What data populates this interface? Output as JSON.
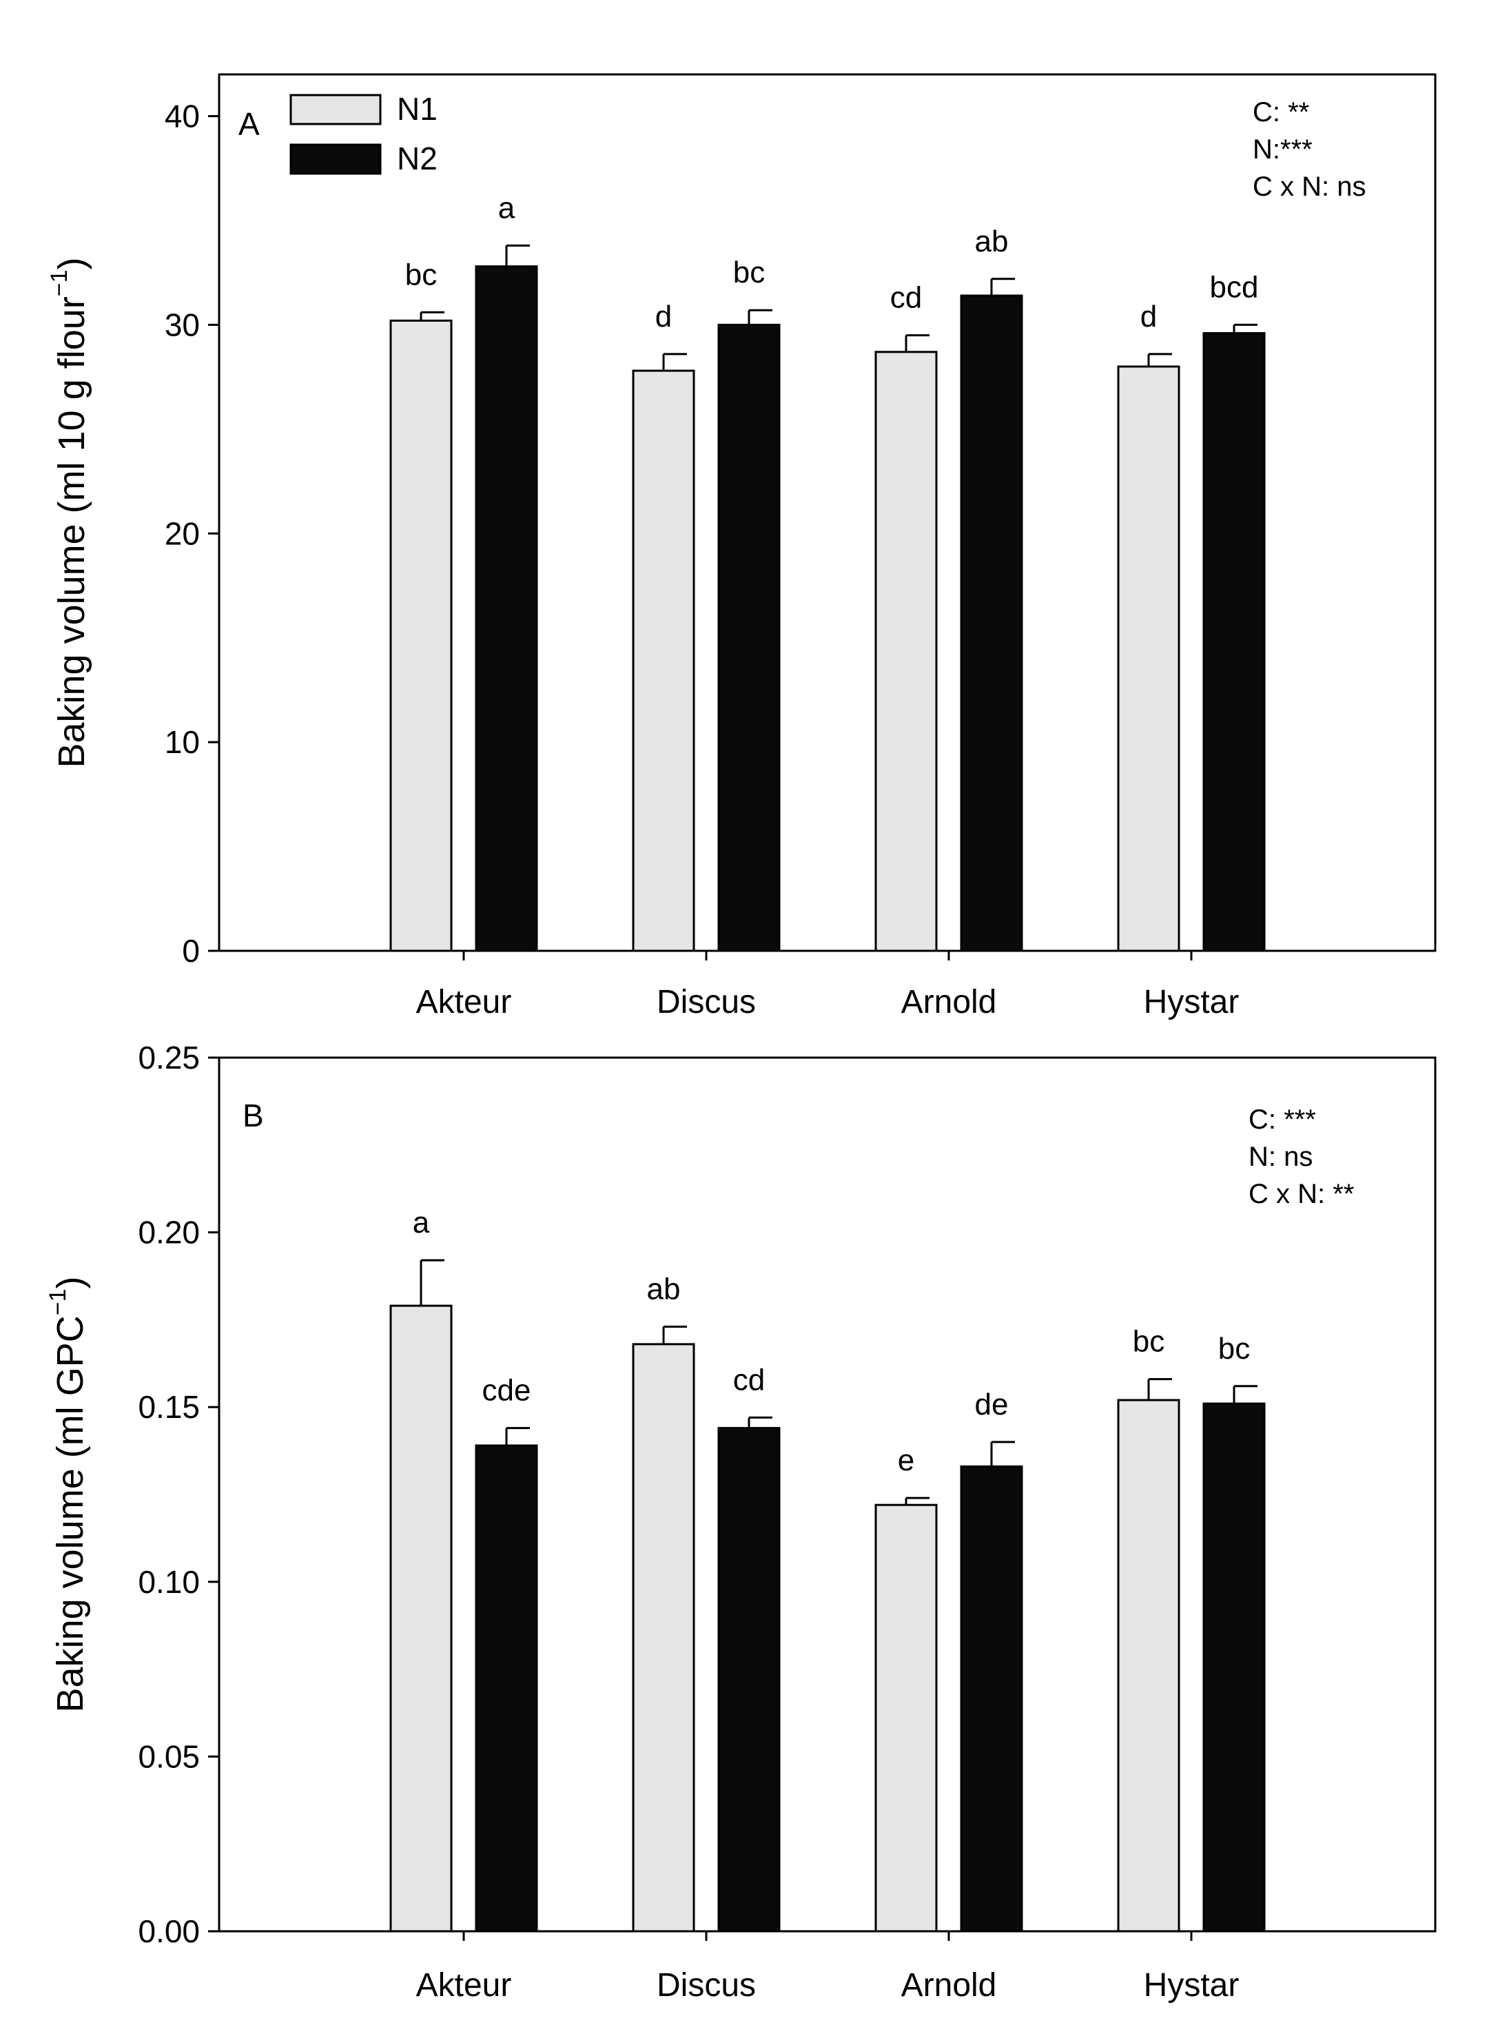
{
  "chart_data": [
    {
      "type": "bar",
      "panel_label": "A",
      "categories": [
        "Akteur",
        "Discus",
        "Arnold",
        "Hystar"
      ],
      "ylabel": "Baking volume (ml 10 g flour",
      "ylabel_sup": "−1",
      "ylabel_close": ")",
      "ylim": [
        0,
        42
      ],
      "yticks": [
        {
          "value": 0,
          "label": "0"
        },
        {
          "value": 10,
          "label": "10"
        },
        {
          "value": 20,
          "label": "20"
        },
        {
          "value": 30,
          "label": "30"
        },
        {
          "value": 40,
          "label": "40"
        }
      ],
      "legend": {
        "position": "top-left",
        "entries": [
          "N1",
          "N2"
        ]
      },
      "stats": [
        "C: **",
        "N:***",
        "C x N: ns"
      ],
      "series": [
        {
          "name": "N1",
          "color": "#e6e6e9",
          "values": [
            30.2,
            27.8,
            28.7,
            28.0
          ],
          "errors": [
            0.4,
            0.8,
            0.8,
            0.6
          ],
          "sig": [
            "bc",
            "d",
            "cd",
            "d"
          ]
        },
        {
          "name": "N2",
          "color": "#0a0a0a",
          "values": [
            32.8,
            30.0,
            31.4,
            29.6
          ],
          "errors": [
            1.0,
            0.7,
            0.8,
            0.4
          ],
          "sig": [
            "a",
            "bc",
            "ab",
            "bcd"
          ]
        }
      ]
    },
    {
      "type": "bar",
      "panel_label": "B",
      "categories": [
        "Akteur",
        "Discus",
        "Arnold",
        "Hystar"
      ],
      "ylabel": "Baking volume (ml GPC",
      "ylabel_sup": "−1",
      "ylabel_close": ")",
      "ylim": [
        0,
        0.25
      ],
      "yticks": [
        {
          "value": 0,
          "label": "0.00"
        },
        {
          "value": 0.05,
          "label": "0.05"
        },
        {
          "value": 0.1,
          "label": "0.10"
        },
        {
          "value": 0.15,
          "label": "0.15"
        },
        {
          "value": 0.2,
          "label": "0.20"
        },
        {
          "value": 0.25,
          "label": "0.25"
        }
      ],
      "stats": [
        "C: ***",
        "N: ns",
        "C x N: **"
      ],
      "series": [
        {
          "name": "N1",
          "color": "#e6e6e9",
          "values": [
            0.179,
            0.168,
            0.122,
            0.152
          ],
          "errors": [
            0.013,
            0.005,
            0.002,
            0.006
          ],
          "sig": [
            "a",
            "ab",
            "e",
            "bc"
          ]
        },
        {
          "name": "N2",
          "color": "#0a0a0a",
          "values": [
            0.139,
            0.144,
            0.133,
            0.151
          ],
          "errors": [
            0.005,
            0.003,
            0.007,
            0.005
          ],
          "sig": [
            "cde",
            "cd",
            "de",
            "bc"
          ]
        }
      ]
    }
  ]
}
